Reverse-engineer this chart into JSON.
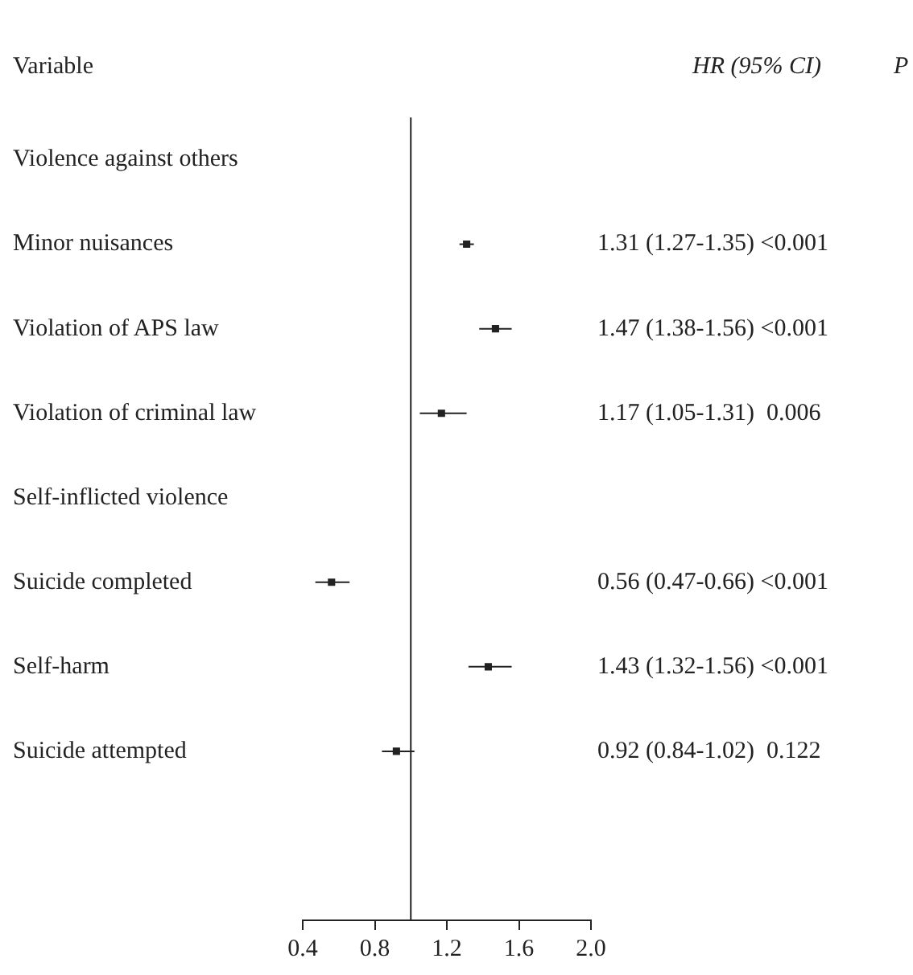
{
  "chart_data": {
    "type": "scatter",
    "orientation": "horizontal",
    "categories": [
      "Violence against others",
      "Minor nuisances",
      "Violation of APS law",
      "Violation of criminal law",
      "Self-inflicted violence",
      "Suicide completed",
      "Self-harm",
      "Suicide attempted"
    ],
    "values": [
      null,
      1.31,
      1.47,
      1.17,
      null,
      0.56,
      1.43,
      0.92
    ],
    "errors": [
      null,
      [
        1.27,
        1.35
      ],
      [
        1.38,
        1.56
      ],
      [
        1.05,
        1.31
      ],
      null,
      [
        0.47,
        0.66
      ],
      [
        1.32,
        1.56
      ],
      [
        0.84,
        1.02
      ]
    ],
    "value_labels": [
      null,
      "1.31 (1.27-1.35) <0.001",
      "1.47 (1.38-1.56) <0.001",
      "1.17 (1.05-1.31)  0.006",
      null,
      "0.56 (0.47-0.66) <0.001",
      "1.43 (1.32-1.56) <0.001",
      "0.92 (0.84-1.02)  0.122"
    ],
    "color": "#222222",
    "marker": "square",
    "xlim": [
      0.4,
      2.0
    ],
    "xticks": [
      0.4,
      0.8,
      1.2,
      1.6,
      {
        "value": 2.0,
        "label": "2.0"
      }
    ],
    "ref_lines": [
      {
        "axis": "x",
        "value": 1.0,
        "color": "#222222"
      }
    ],
    "annotations": [
      "Variable",
      "HR (95% CI)",
      "P"
    ],
    "grid": false,
    "legend": false
  }
}
